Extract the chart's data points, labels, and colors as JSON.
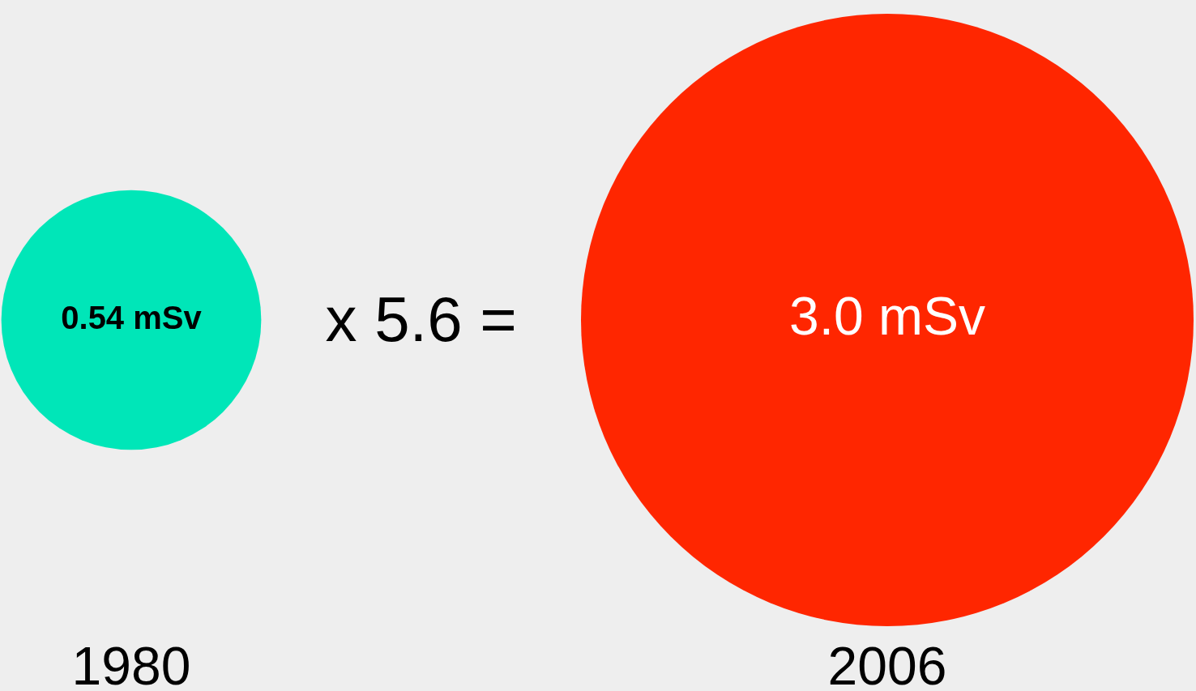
{
  "chart_data": {
    "type": "other",
    "categories": [
      "1980",
      "2006"
    ],
    "values": [
      0.54,
      3.0
    ],
    "value_labels": [
      "0.54 mSv",
      "3.0 mSv"
    ],
    "colors": [
      "#00e6b8",
      "#ff2600"
    ],
    "annotations": [
      "x 5.6 ="
    ]
  }
}
